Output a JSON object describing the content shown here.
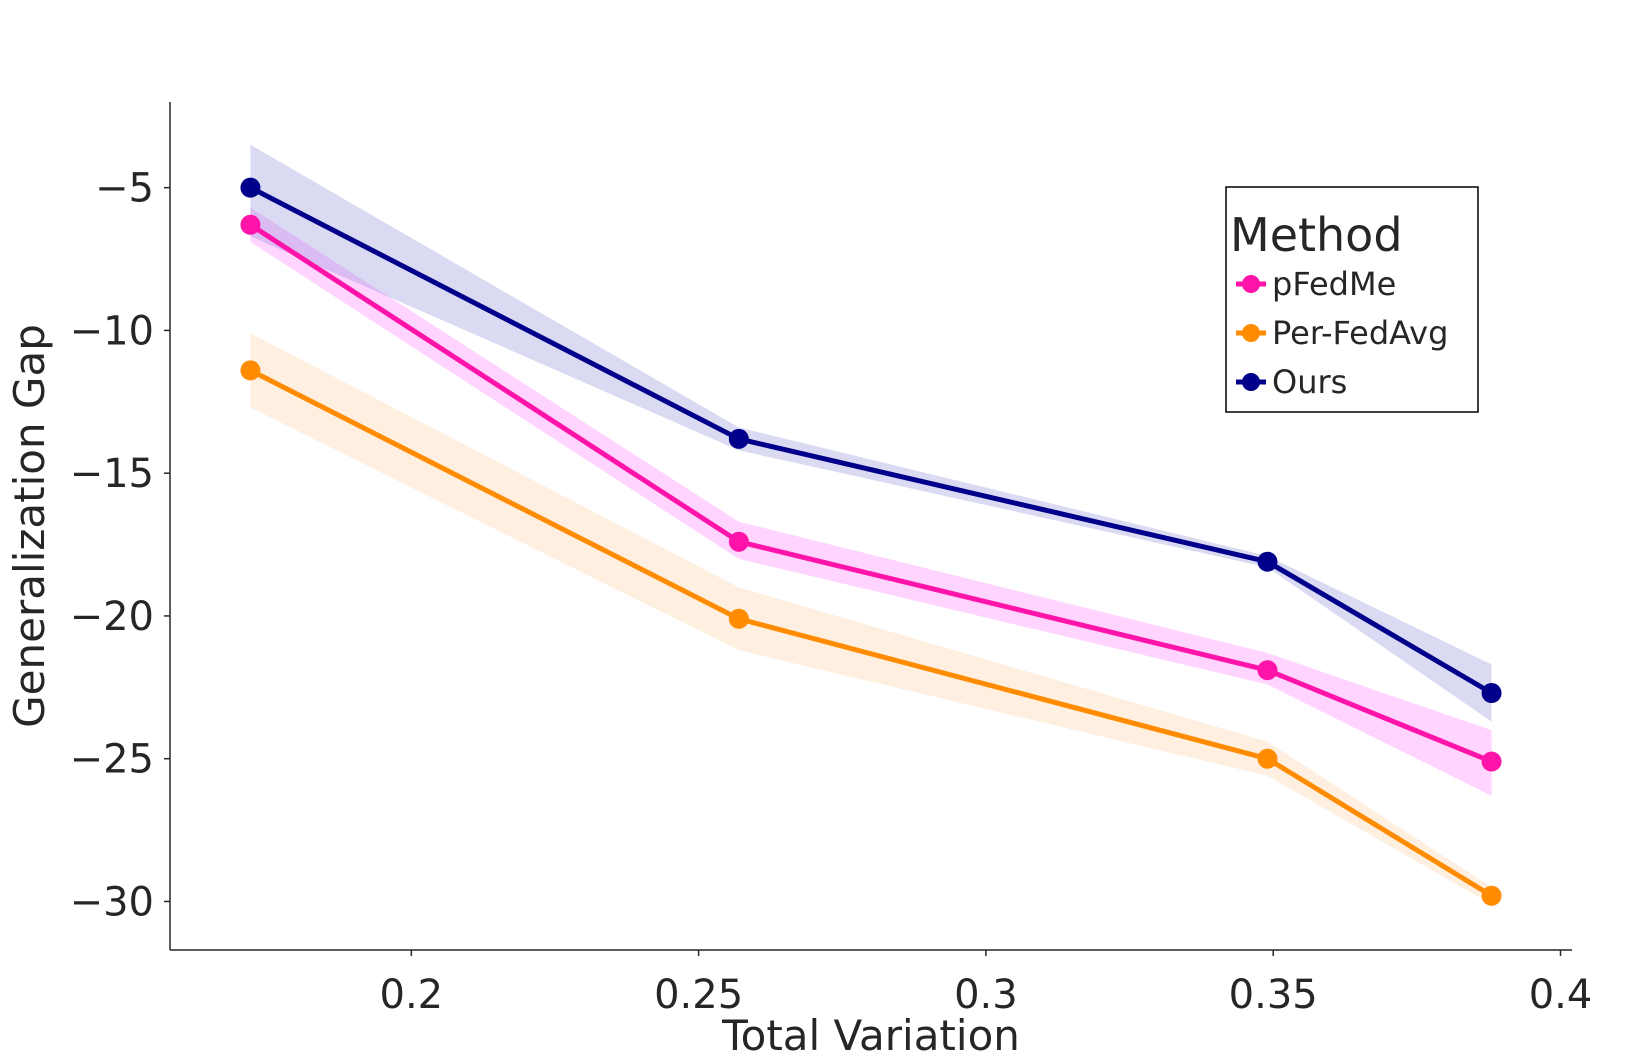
{
  "chart_data": {
    "type": "line",
    "xlabel": "Total Variation",
    "ylabel": "Generalization Gap",
    "xlim": [
      0.158,
      0.402
    ],
    "ylim": [
      -31.7,
      -2.0
    ],
    "x_ticks": [
      0.2,
      0.25,
      0.3,
      0.35,
      0.4
    ],
    "x_tick_labels": [
      "0.2",
      "0.25",
      "0.3",
      "0.35",
      "0.4"
    ],
    "y_ticks": [
      -5,
      -10,
      -15,
      -20,
      -25,
      -30
    ],
    "y_tick_labels": [
      "−5",
      "−10",
      "−15",
      "−20",
      "−25",
      "−30"
    ],
    "grid": false,
    "legend": {
      "title": "Method",
      "placement": "top-right"
    },
    "x": [
      0.172,
      0.257,
      0.349,
      0.388
    ],
    "series": [
      {
        "name": "pFedMe",
        "color": "#ff14aa",
        "band_color": "#ff66ff",
        "values": [
          -6.3,
          -17.4,
          -21.9,
          -25.1
        ],
        "lower": [
          -6.9,
          -18.0,
          -22.4,
          -26.3
        ],
        "upper": [
          -5.7,
          -16.7,
          -21.3,
          -24.0
        ]
      },
      {
        "name": "Per-FedAvg",
        "color": "#ff8c00",
        "band_color": "#ffc58f",
        "values": [
          -11.4,
          -20.1,
          -25.0,
          -29.8
        ],
        "lower": [
          -12.7,
          -21.2,
          -25.6,
          -30.1
        ],
        "upper": [
          -10.1,
          -19.0,
          -24.4,
          -29.5
        ]
      },
      {
        "name": "Ours",
        "color": "#00008b",
        "band_color": "#7b7bcf",
        "values": [
          -5.0,
          -13.8,
          -18.1,
          -22.7
        ],
        "lower": [
          -6.7,
          -14.2,
          -18.3,
          -23.7
        ],
        "upper": [
          -3.5,
          -13.4,
          -17.9,
          -21.7
        ]
      }
    ]
  }
}
